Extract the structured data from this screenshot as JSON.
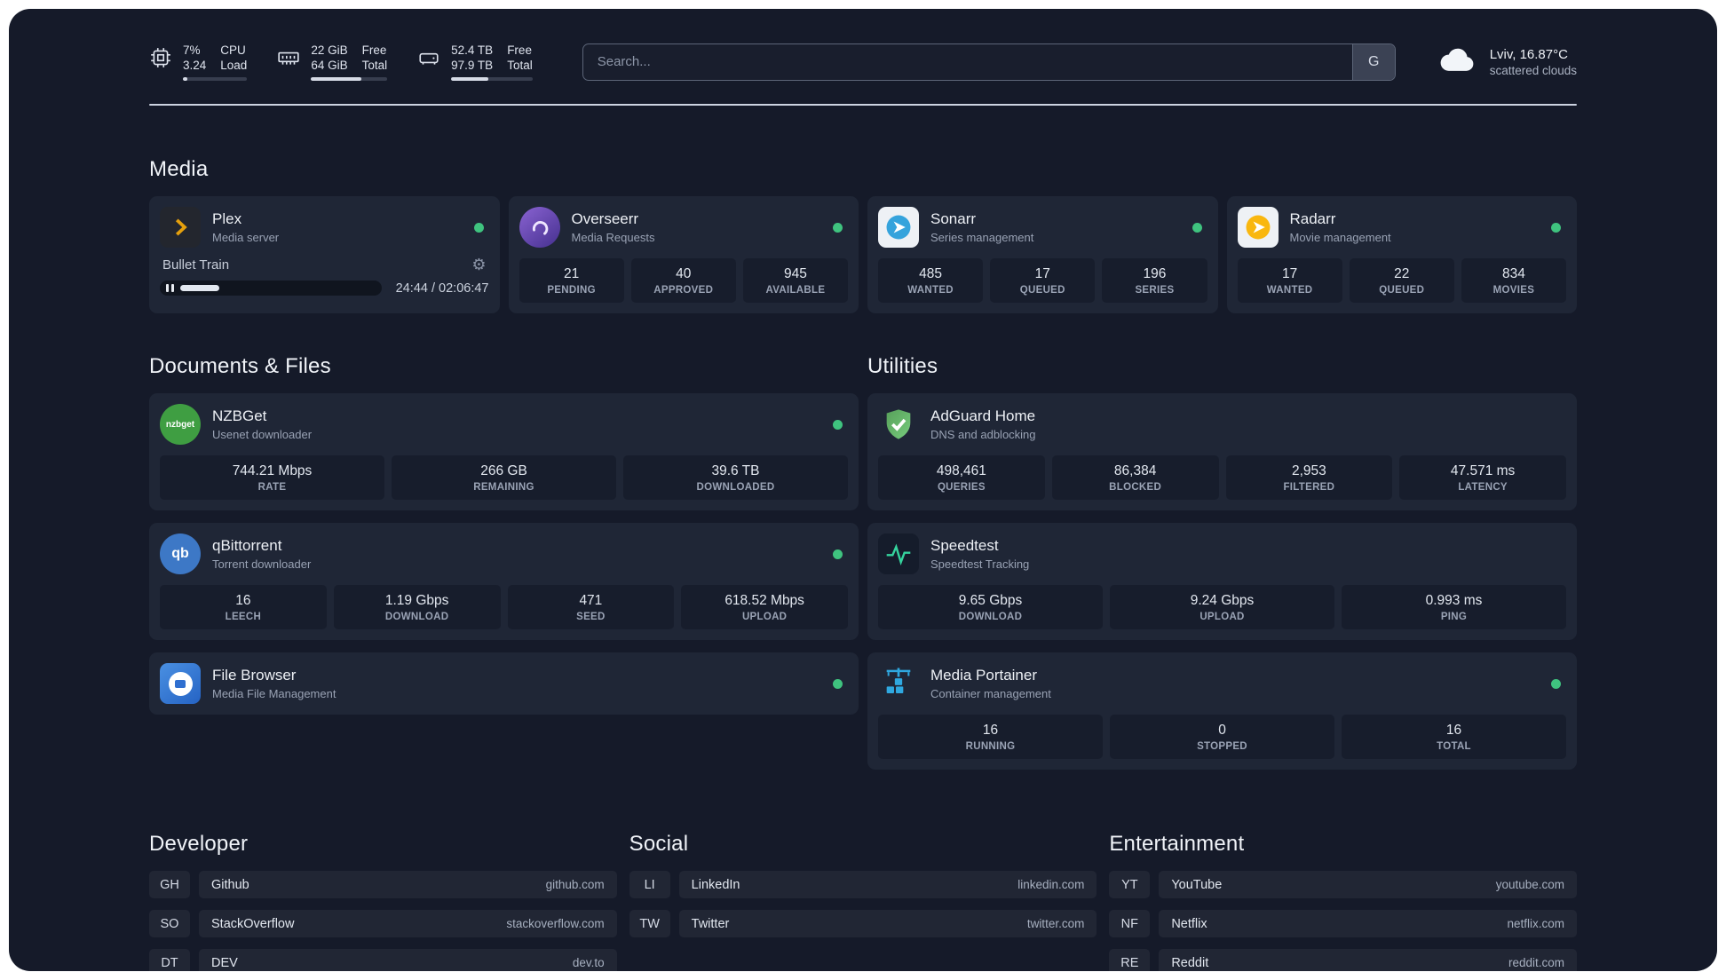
{
  "colors": {
    "status_online": "#3fc37f",
    "plex_accent": "#e5a00d",
    "sonarr_blue": "#35a3dc",
    "radarr_gold": "#f9b70f",
    "adguard_green": "#68bc71",
    "portainer_blue": "#2fa8e0"
  },
  "topbar": {
    "resources": [
      {
        "icon": "cpu-icon",
        "top_value": "7%",
        "bottom_value": "3.24",
        "top_label": "CPU",
        "bottom_label": "Load",
        "progress": 7
      },
      {
        "icon": "memory-icon",
        "top_value": "22 GiB",
        "bottom_value": "64 GiB",
        "top_label": "Free",
        "bottom_label": "Total",
        "progress": 66
      },
      {
        "icon": "disk-icon",
        "top_value": "52.4 TB",
        "bottom_value": "97.9 TB",
        "top_label": "Free",
        "bottom_label": "Total",
        "progress": 46
      }
    ],
    "search": {
      "placeholder": "Search...",
      "button_label": "G"
    },
    "weather": {
      "icon": "cloud-icon",
      "location": "Lviv, 16.87°C",
      "condition": "scattered clouds"
    }
  },
  "sections": {
    "media": {
      "title": "Media",
      "services": [
        {
          "name": "Plex",
          "description": "Media server",
          "status": "online",
          "player": {
            "track": "Bullet Train",
            "time": "24:44 / 02:06:47",
            "progress": 20
          }
        },
        {
          "name": "Overseerr",
          "description": "Media Requests",
          "status": "online",
          "stats": [
            {
              "value": "21",
              "label": "PENDING"
            },
            {
              "value": "40",
              "label": "APPROVED"
            },
            {
              "value": "945",
              "label": "AVAILABLE"
            }
          ]
        },
        {
          "name": "Sonarr",
          "description": "Series management",
          "status": "online",
          "stats": [
            {
              "value": "485",
              "label": "WANTED"
            },
            {
              "value": "17",
              "label": "QUEUED"
            },
            {
              "value": "196",
              "label": "SERIES"
            }
          ]
        },
        {
          "name": "Radarr",
          "description": "Movie management",
          "status": "online",
          "stats": [
            {
              "value": "17",
              "label": "WANTED"
            },
            {
              "value": "22",
              "label": "QUEUED"
            },
            {
              "value": "834",
              "label": "MOVIES"
            }
          ]
        }
      ]
    },
    "documents": {
      "title": "Documents & Files",
      "services": [
        {
          "name": "NZBGet",
          "description": "Usenet downloader",
          "status": "online",
          "icon_text": "nzbget",
          "stats": [
            {
              "value": "744.21 Mbps",
              "label": "RATE"
            },
            {
              "value": "266 GB",
              "label": "REMAINING"
            },
            {
              "value": "39.6 TB",
              "label": "DOWNLOADED"
            }
          ]
        },
        {
          "name": "qBittorrent",
          "description": "Torrent downloader",
          "status": "online",
          "icon_text": "qb",
          "stats": [
            {
              "value": "16",
              "label": "LEECH"
            },
            {
              "value": "1.19 Gbps",
              "label": "DOWNLOAD"
            },
            {
              "value": "471",
              "label": "SEED"
            },
            {
              "value": "618.52 Mbps",
              "label": "UPLOAD"
            }
          ]
        },
        {
          "name": "File Browser",
          "description": "Media File Management",
          "status": "online",
          "stats": []
        }
      ]
    },
    "utilities": {
      "title": "Utilities",
      "services": [
        {
          "name": "AdGuard Home",
          "description": "DNS and adblocking",
          "stats": [
            {
              "value": "498,461",
              "label": "QUERIES"
            },
            {
              "value": "86,384",
              "label": "BLOCKED"
            },
            {
              "value": "2,953",
              "label": "FILTERED"
            },
            {
              "value": "47.571 ms",
              "label": "LATENCY"
            }
          ]
        },
        {
          "name": "Speedtest",
          "description": "Speedtest Tracking",
          "stats": [
            {
              "value": "9.65 Gbps",
              "label": "DOWNLOAD"
            },
            {
              "value": "9.24 Gbps",
              "label": "UPLOAD"
            },
            {
              "value": "0.993 ms",
              "label": "PING"
            }
          ]
        },
        {
          "name": "Media Portainer",
          "description": "Container management",
          "status": "online",
          "stats": [
            {
              "value": "16",
              "label": "RUNNING"
            },
            {
              "value": "0",
              "label": "STOPPED"
            },
            {
              "value": "16",
              "label": "TOTAL"
            }
          ]
        }
      ]
    }
  },
  "bookmarks": {
    "developer": {
      "title": "Developer",
      "items": [
        {
          "abbr": "GH",
          "name": "Github",
          "domain": "github.com"
        },
        {
          "abbr": "SO",
          "name": "StackOverflow",
          "domain": "stackoverflow.com"
        },
        {
          "abbr": "DT",
          "name": "DEV",
          "domain": "dev.to"
        }
      ]
    },
    "social": {
      "title": "Social",
      "items": [
        {
          "abbr": "LI",
          "name": "LinkedIn",
          "domain": "linkedin.com"
        },
        {
          "abbr": "TW",
          "name": "Twitter",
          "domain": "twitter.com"
        }
      ]
    },
    "entertainment": {
      "title": "Entertainment",
      "items": [
        {
          "abbr": "YT",
          "name": "YouTube",
          "domain": "youtube.com"
        },
        {
          "abbr": "NF",
          "name": "Netflix",
          "domain": "netflix.com"
        },
        {
          "abbr": "RE",
          "name": "Reddit",
          "domain": "reddit.com"
        }
      ]
    }
  }
}
